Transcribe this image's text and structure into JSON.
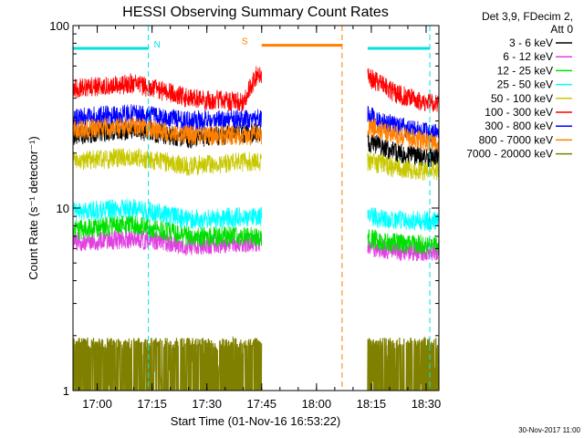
{
  "chart_data": {
    "type": "line",
    "title": "HESSI Observing Summary Count Rates",
    "xlabel": "Start Time (01-Nov-16 16:53:22)",
    "ylabel": "Count Rate (s⁻¹ detector⁻¹)",
    "yscale": "log",
    "ylim": [
      1,
      100
    ],
    "xlim": [
      "16:53:22",
      "18:33:30"
    ],
    "x_ticks": [
      "17:00",
      "17:15",
      "17:30",
      "17:45",
      "18:00",
      "18:15",
      "18:30"
    ],
    "y_ticks": [
      "1",
      "10",
      "100"
    ],
    "legend_header": [
      "Det 3,9, FDecim 2,",
      "Att 0"
    ],
    "legend_position": "right",
    "footer": "30-Nov-2017 11:00",
    "series": [
      {
        "name": "3 - 6 keV",
        "color": "#000000",
        "points": [
          [
            "16:53",
            25
          ],
          [
            "17:10",
            27
          ],
          [
            "17:25",
            24
          ],
          [
            "17:44",
            26
          ],
          [
            "18:14",
            23
          ],
          [
            "18:22",
            20
          ],
          [
            "18:30",
            19
          ]
        ]
      },
      {
        "name": "6 - 12 keV",
        "color": "#e040e0",
        "points": [
          [
            "16:53",
            6.5
          ],
          [
            "17:10",
            6.8
          ],
          [
            "17:25",
            6.2
          ],
          [
            "17:44",
            6.5
          ],
          [
            "18:14",
            6.2
          ],
          [
            "18:22",
            5.8
          ],
          [
            "18:30",
            5.8
          ]
        ]
      },
      {
        "name": "12 - 25 keV",
        "color": "#00e000",
        "points": [
          [
            "16:53",
            7.5
          ],
          [
            "17:10",
            8.2
          ],
          [
            "17:25",
            7
          ],
          [
            "17:44",
            7
          ],
          [
            "18:14",
            6.8
          ],
          [
            "18:22",
            6.4
          ],
          [
            "18:30",
            6.3
          ]
        ]
      },
      {
        "name": "25 - 50 keV",
        "color": "#00ffff",
        "points": [
          [
            "16:53",
            9.5
          ],
          [
            "17:10",
            10
          ],
          [
            "17:25",
            8.6
          ],
          [
            "17:44",
            9
          ],
          [
            "18:14",
            9
          ],
          [
            "18:22",
            8.6
          ],
          [
            "18:30",
            8.5
          ]
        ]
      },
      {
        "name": "50 - 100 keV",
        "color": "#c8c800",
        "points": [
          [
            "16:53",
            18
          ],
          [
            "17:10",
            19
          ],
          [
            "17:25",
            17
          ],
          [
            "17:44",
            18
          ],
          [
            "18:14",
            18
          ],
          [
            "18:22",
            16.5
          ],
          [
            "18:30",
            16
          ]
        ]
      },
      {
        "name": "100 - 300 keV",
        "color": "#ff0000",
        "points": [
          [
            "16:53",
            45
          ],
          [
            "17:10",
            48
          ],
          [
            "17:25",
            40
          ],
          [
            "17:40",
            38
          ],
          [
            "17:44",
            55
          ],
          [
            "18:14",
            52
          ],
          [
            "18:22",
            42
          ],
          [
            "18:30",
            38
          ]
        ]
      },
      {
        "name": "300 - 800 keV",
        "color": "#0000ff",
        "points": [
          [
            "16:53",
            31
          ],
          [
            "17:10",
            33
          ],
          [
            "17:25",
            30
          ],
          [
            "17:44",
            31
          ],
          [
            "18:14",
            32
          ],
          [
            "18:22",
            28
          ],
          [
            "18:30",
            26
          ]
        ]
      },
      {
        "name": "800 - 7000 keV",
        "color": "#ff8000",
        "points": [
          [
            "16:53",
            27
          ],
          [
            "17:10",
            28
          ],
          [
            "17:25",
            25
          ],
          [
            "17:44",
            25
          ],
          [
            "18:14",
            28
          ],
          [
            "18:22",
            25
          ],
          [
            "18:30",
            23
          ]
        ]
      },
      {
        "name": "7000 - 20000 keV",
        "color": "#808000",
        "points": [
          [
            "16:53",
            1.2
          ],
          [
            "17:10",
            1.5
          ],
          [
            "17:25",
            1.2
          ],
          [
            "17:44",
            1.2
          ],
          [
            "18:14",
            1.2
          ],
          [
            "18:22",
            1.2
          ],
          [
            "18:30",
            1.2
          ]
        ]
      }
    ],
    "flags": [
      {
        "label": "N",
        "color": "#00e0e0",
        "level": 75,
        "start": "16:53",
        "end": "17:14"
      },
      {
        "label": "S",
        "color": "#ff8000",
        "level": 78,
        "start": "17:45",
        "end": "18:07"
      },
      {
        "label": "",
        "color": "#00e0e0",
        "level": 75,
        "start": "18:14",
        "end": "18:31"
      }
    ],
    "vertical_markers": [
      {
        "time": "17:14",
        "color": "#00e0e0"
      },
      {
        "time": "18:07",
        "color": "#ff8000"
      },
      {
        "time": "18:31",
        "color": "#00e0e0"
      }
    ],
    "data_gap": [
      "17:45",
      "18:14"
    ]
  }
}
